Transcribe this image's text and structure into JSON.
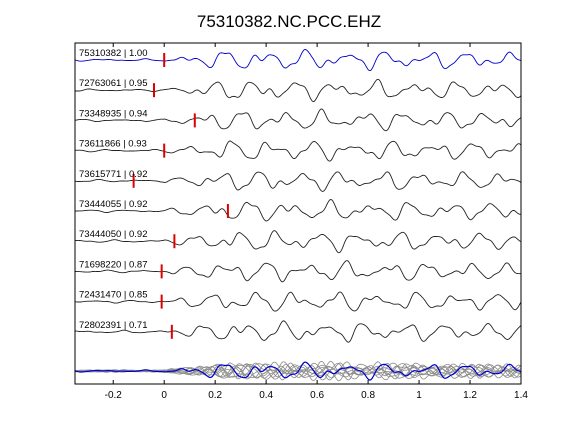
{
  "chart_data": {
    "type": "line",
    "title": "75310382.NC.PCC.EHZ",
    "xlabel": "",
    "ylabel": "",
    "xlim": [
      -0.35,
      1.4
    ],
    "xticks": [
      -0.2,
      0,
      0.2,
      0.4,
      0.6,
      0.8,
      1,
      1.2,
      1.4
    ],
    "xtick_labels": [
      "-0.2",
      "0",
      "0.2",
      "0.4",
      "0.6",
      "0.8",
      "1",
      "1.2",
      "1.4"
    ],
    "grid": false,
    "legend": "none",
    "master_color": "#0000cc",
    "trace_color": "#222222",
    "stack_color": "#8a8a8a",
    "pick_color": "#dd0000",
    "traces": [
      {
        "label": "75310382 | 1.00",
        "pick": 0.0,
        "master": true
      },
      {
        "label": "72763061 | 0.95",
        "pick": -0.04
      },
      {
        "label": "73348935 | 0.94",
        "pick": 0.12
      },
      {
        "label": "73611866 | 0.93",
        "pick": 0.0
      },
      {
        "label": "73615771 | 0.92",
        "pick": -0.12
      },
      {
        "label": "73444055 | 0.92",
        "pick": 0.25
      },
      {
        "label": "73444050 | 0.92",
        "pick": 0.04
      },
      {
        "label": "71698220 | 0.87",
        "pick": -0.01
      },
      {
        "label": "72431470 | 0.85",
        "pick": -0.01
      },
      {
        "label": "72802391 | 0.71",
        "pick": 0.03
      }
    ],
    "stack_row": {
      "label": "",
      "count": 10
    }
  }
}
